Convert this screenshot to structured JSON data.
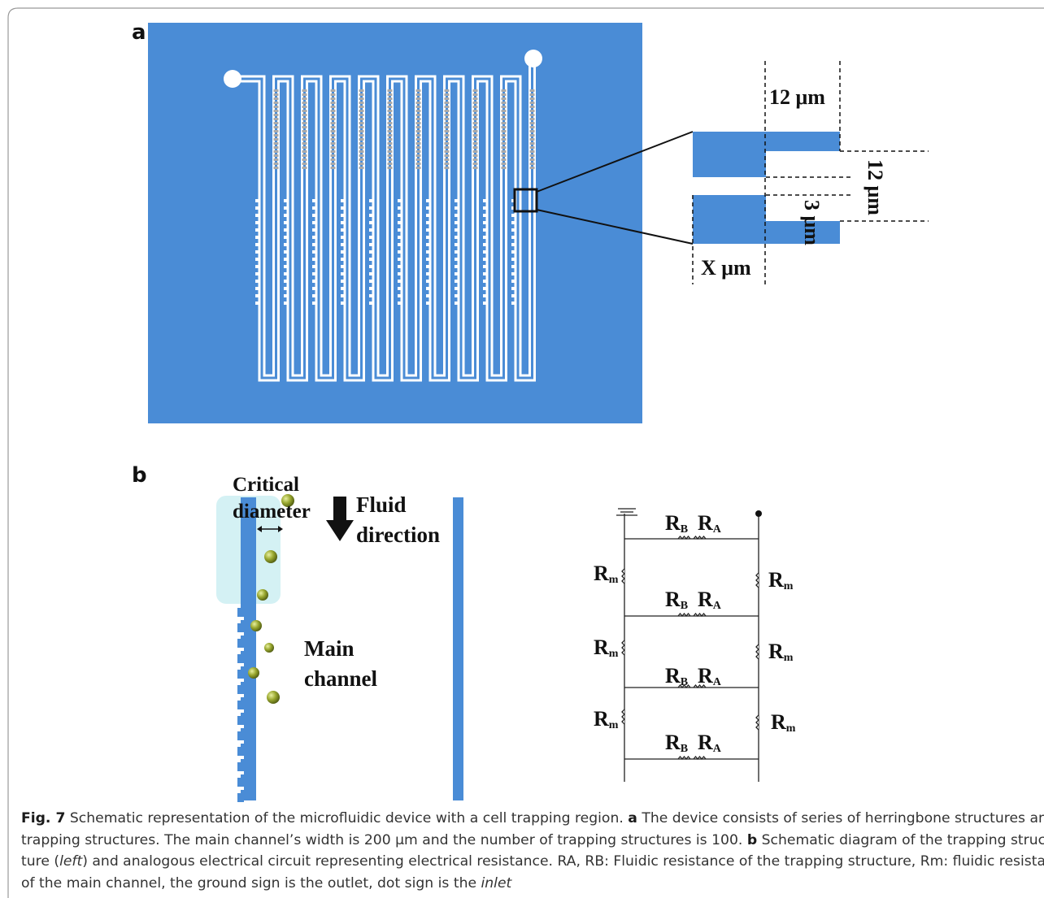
{
  "panel_a": {
    "label": "a",
    "zoom": {
      "width_top": "12 μm",
      "gap": "12 μm",
      "trap_gap": "3 μm",
      "width_x": "X μm"
    }
  },
  "panel_b": {
    "label": "b",
    "critical": "Critical diameter",
    "fluid": "Fluid direction",
    "main": "Main channel"
  },
  "circuit": {
    "labels": [
      [
        "R",
        "B"
      ],
      [
        "R",
        "A"
      ],
      [
        "R",
        "m"
      ],
      [
        "R",
        "m"
      ],
      [
        "R",
        "B"
      ],
      [
        "R",
        "A"
      ],
      [
        "R",
        "m"
      ],
      [
        "R",
        "m"
      ],
      [
        "R",
        "B"
      ],
      [
        "R",
        "A"
      ],
      [
        "R",
        "m"
      ],
      [
        "R",
        "m"
      ],
      [
        "R",
        "B"
      ],
      [
        "R",
        "A"
      ]
    ]
  },
  "caption": {
    "label": "Fig. 7",
    "text": [
      " Schematic representation of the microfluidic device with a cell trapping region. ",
      "a",
      " The device consists of series of herringbone structures and",
      "trapping structures. The main channel’s width is 200 μm and the number of trapping structures is 100. ",
      "b",
      " Schematic diagram of the trapping struc-",
      "ture (",
      "left",
      ") and analogous electrical circuit representing electrical resistance. RA, RB: Fluidic resistance of the trapping structure, Rm: fluidic resistance",
      "of the main channel, the ground sign is the outlet, dot sign is the ",
      "inlet"
    ]
  }
}
